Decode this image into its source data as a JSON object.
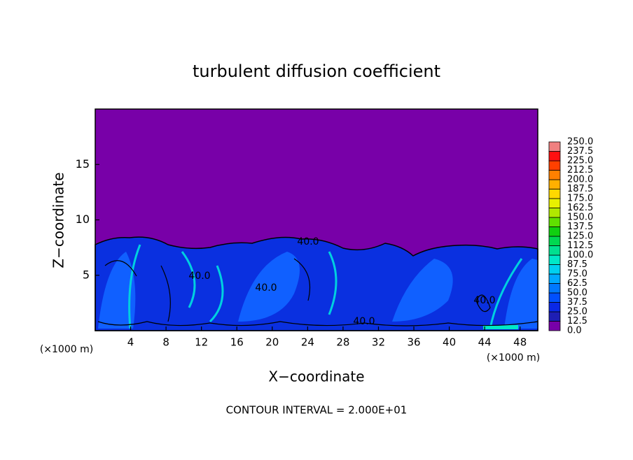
{
  "chart_data": {
    "type": "contour",
    "title": "turbulent diffusion coefficient",
    "xlabel": "X−coordinate",
    "ylabel": "Z−coordinate",
    "x_unit_label": "(×1000 m)",
    "y_unit_label": "(×1000 m)",
    "footnote": "CONTOUR INTERVAL = 2.000E+01",
    "xlim": [
      0,
      50
    ],
    "xticks": [
      4,
      8,
      12,
      16,
      20,
      24,
      28,
      32,
      36,
      40,
      44,
      48
    ],
    "ylim": [
      0,
      20
    ],
    "yticks": [
      5,
      10,
      15
    ],
    "contour_labels": [
      {
        "value": 40,
        "label": "40.0"
      },
      {
        "value": 40,
        "label": "40.0"
      },
      {
        "value": 40,
        "label": "40.0"
      },
      {
        "value": 40,
        "label": "40.0"
      },
      {
        "value": 40,
        "label": "40.0"
      }
    ],
    "colorbar": {
      "levels": [
        {
          "value": 0,
          "label": "0.0"
        },
        12.5,
        {
          "value": 25,
          "label": "25.0"
        },
        37.5,
        {
          "value": 50,
          "label": "50.0"
        },
        62.5,
        {
          "value": 75,
          "label": "75.0"
        },
        87.5,
        {
          "value": 100,
          "label": "100.0"
        },
        112.5,
        {
          "value": 125,
          "label": "125.0"
        },
        137.5,
        {
          "value": 150,
          "label": "150.0"
        },
        162.5,
        {
          "value": 175,
          "label": "175.0"
        },
        187.5,
        {
          "value": 200,
          "label": "200.0"
        },
        212.5,
        {
          "value": 225,
          "label": "225.0"
        },
        237.5,
        {
          "value": 250,
          "label": "250.0"
        }
      ],
      "colors": [
        "#7800a8",
        "#1e1eb4",
        "#0a28e6",
        "#0050ff",
        "#0078ff",
        "#00a8ff",
        "#00d0f0",
        "#00e8c8",
        "#00e090",
        "#00d850",
        "#10d010",
        "#60e000",
        "#b0e800",
        "#e8f000",
        "#ffd800",
        "#ffb000",
        "#ff8000",
        "#ff4000",
        "#ff1010",
        "#f08080"
      ]
    }
  }
}
